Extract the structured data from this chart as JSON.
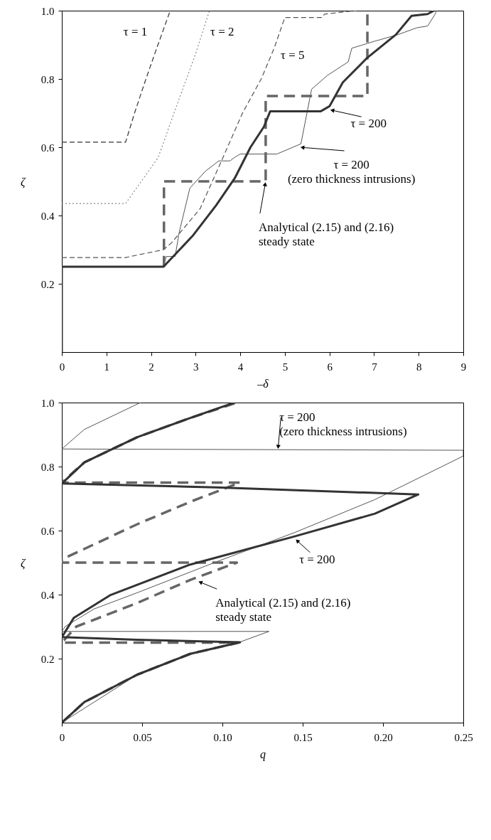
{
  "chart_data": [
    {
      "type": "line",
      "xlabel": "–δ",
      "ylabel": "ζ",
      "xlim": [
        0,
        9
      ],
      "ylim": [
        0,
        1
      ],
      "xticks": [
        0,
        1,
        2,
        3,
        4,
        5,
        6,
        7,
        8,
        9
      ],
      "yticks": [
        0.2,
        0.4,
        0.6,
        0.8,
        {
          "value": 1,
          "label": "1.0"
        }
      ],
      "grid": false,
      "series": [
        {
          "name": "τ = 1",
          "color": "#333333",
          "line_style": "dashed",
          "x": [
            0,
            1.43,
            1.63,
            1.86,
            2.1,
            2.43
          ],
          "values": [
            0.615,
            0.615,
            0.7,
            0.79,
            0.88,
            1.0
          ]
        },
        {
          "name": "τ = 2",
          "color": "#888888",
          "line_style": "dotted",
          "x": [
            0,
            1.43,
            2.16,
            2.57,
            2.99,
            3.31
          ],
          "values": [
            0.435,
            0.435,
            0.57,
            0.72,
            0.87,
            1.0
          ]
        },
        {
          "name": "τ = 5",
          "color": "#555555",
          "line_style": "dashed",
          "x": [
            0,
            1.43,
            2.28,
            2.46,
            3.1,
            3.58,
            4.05,
            4.47,
            4.76,
            5.0,
            5.83,
            5.89,
            6.6
          ],
          "values": [
            0.277,
            0.277,
            0.3,
            0.32,
            0.42,
            0.56,
            0.7,
            0.8,
            0.89,
            0.98,
            0.98,
            0.99,
            1.0
          ]
        },
        {
          "color": "#555555",
          "line_style": "solid",
          "x": [
            2.28,
            2.34,
            2.54,
            2.63,
            2.87,
            3.22,
            3.52,
            3.77,
            3.87,
            4.0,
            4.82,
            5.36,
            5.6,
            5.95,
            6.42,
            6.5,
            7.0,
            7.54,
            7.96,
            8.2,
            8.37,
            8.4
          ],
          "values": [
            0.25,
            0.28,
            0.28,
            0.35,
            0.48,
            0.53,
            0.56,
            0.56,
            0.57,
            0.58,
            0.58,
            0.61,
            0.77,
            0.81,
            0.85,
            0.89,
            0.91,
            0.93,
            0.95,
            0.955,
            0.99,
            1.0
          ]
        },
        {
          "color": "#666666",
          "line_style": "dashed",
          "x": [
            2.29,
            2.29,
            4.57,
            4.57,
            6.85,
            6.85
          ],
          "values": [
            0.25,
            0.5,
            0.5,
            0.75,
            0.75,
            1.0
          ]
        },
        {
          "color": "#333333",
          "line_style": "solid",
          "x": [
            0,
            0,
            2.28,
            2.93,
            3.46,
            3.88,
            4.23,
            4.53,
            4.67,
            5.8,
            6.0,
            6.3,
            6.83,
            7.49,
            7.84,
            8.2,
            8.34
          ],
          "values": [
            0,
            0.25,
            0.25,
            0.34,
            0.43,
            0.51,
            0.6,
            0.66,
            0.705,
            0.705,
            0.72,
            0.79,
            0.86,
            0.93,
            0.985,
            0.99,
            1.0
          ]
        }
      ],
      "annotations": [
        {
          "text": "τ = 200",
          "x": 6.0,
          "y": 0.71
        },
        {
          "text": "τ = 200\n(zero thickness intrusions)",
          "x": 5.33,
          "y": 0.6
        },
        {
          "text": "Analytical (2.15) and (2.16)\nsteady state",
          "x": 4.57,
          "y": 0.5
        }
      ]
    },
    {
      "type": "line",
      "xlabel": "q",
      "ylabel": "ζ",
      "xlim": [
        0,
        0.25
      ],
      "ylim": [
        0,
        1
      ],
      "xticks": [
        0,
        0.05,
        {
          "value": 0.1,
          "label": "0.10"
        },
        0.15,
        {
          "value": 0.2,
          "label": "0.20"
        },
        0.25
      ],
      "yticks": [
        0.2,
        0.4,
        0.6,
        0.8,
        {
          "value": 1,
          "label": "1.0"
        }
      ],
      "grid": false,
      "series": [
        {
          "color": "#555555",
          "line_style": "solid",
          "x": [
            0,
            0.047,
            0.08,
            0.111,
            0.129,
            0,
            0.002,
            0.02,
            0.047,
            0.096,
            0.145,
            0.195,
            0.25,
            0.25,
            0,
            0.014,
            0.049
          ],
          "values": [
            0,
            0.15,
            0.215,
            0.252,
            0.285,
            0.285,
            0.3,
            0.355,
            0.406,
            0.502,
            0.594,
            0.697,
            0.833,
            0.851,
            0.855,
            0.916,
            1.0
          ]
        },
        {
          "color": "#666666",
          "line_style": "dashed",
          "x": [
            0,
            0.014,
            0.047,
            0.08,
            0.11,
            0,
            0.009,
            0.047,
            0.08,
            0.109,
            0,
            0,
            0.047,
            0.08,
            0.111,
            0,
            0.014,
            0.047,
            0.08,
            0.109
          ],
          "values": [
            0,
            0.064,
            0.15,
            0.215,
            0.25,
            0.25,
            0.3,
            0.374,
            0.446,
            0.5,
            0.5,
            0.51,
            0.62,
            0.69,
            0.75,
            0.75,
            0.813,
            0.892,
            0.952,
            1.0
          ]
        },
        {
          "color": "#333333",
          "line_style": "solid",
          "x": [
            0,
            0.014,
            0.047,
            0.08,
            0.111,
            0.047,
            0,
            0.0074,
            0.03,
            0.08,
            0.145,
            0.195,
            0.222,
            0.096,
            0,
            0.014,
            0.047,
            0.08,
            0.1075
          ],
          "values": [
            0,
            0.064,
            0.15,
            0.215,
            0.251,
            0.259,
            0.267,
            0.327,
            0.398,
            0.494,
            0.582,
            0.653,
            0.713,
            0.735,
            0.747,
            0.813,
            0.892,
            0.952,
            1.0
          ]
        }
      ],
      "annotations": [
        {
          "text": "τ = 200\n(zero thickness intrusions)",
          "x": 0.1346,
          "y": 0.853
        },
        {
          "text": "τ = 200",
          "x": 0.1453,
          "y": 0.574
        },
        {
          "text": "Analytical (2.15) and (2.16)\nsteady state",
          "x": 0.0846,
          "y": 0.442
        }
      ]
    }
  ]
}
